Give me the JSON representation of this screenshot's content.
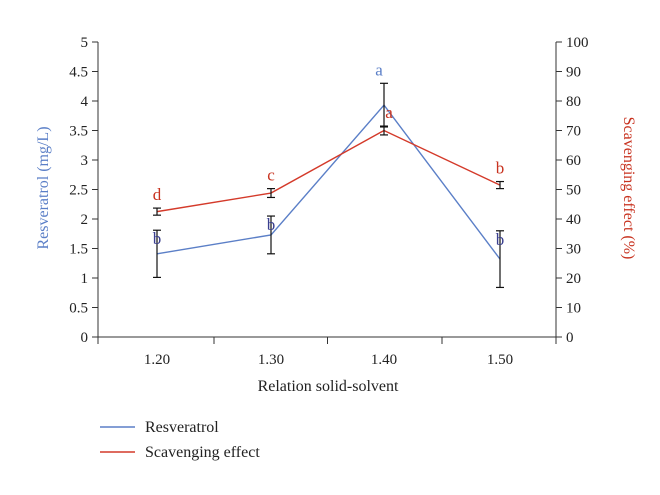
{
  "chart_data": {
    "type": "line",
    "title": "",
    "xlabel": "Relation solid-solvent",
    "categories": [
      "1.20",
      "1.30",
      "1.40",
      "1.50"
    ],
    "y_left": {
      "label": "Resveratrol (mg/L)",
      "min": 0,
      "max": 5,
      "ticks": [
        "0",
        "0.5",
        "1",
        "1.5",
        "2",
        "2.5",
        "3",
        "3.5",
        "4",
        "4.5",
        "5"
      ]
    },
    "y_right": {
      "label": "Scavenging effect (%)",
      "min": 0,
      "max": 100,
      "ticks": [
        "0",
        "10",
        "20",
        "30",
        "40",
        "50",
        "60",
        "70",
        "80",
        "90",
        "100"
      ]
    },
    "series": [
      {
        "name": "Resveratrol",
        "axis": "left",
        "color": "#5b7fc7",
        "values": [
          1.41,
          1.73,
          3.93,
          1.32
        ],
        "error": [
          0.4,
          0.32,
          0.37,
          0.48
        ],
        "labels": [
          "b",
          "b",
          "a",
          "b"
        ],
        "label_color": "#3a3f8f"
      },
      {
        "name": "Scavenging effect",
        "axis": "right",
        "color": "#d43a2a",
        "values": [
          42.5,
          48.8,
          70.0,
          51.5
        ],
        "error": [
          1.2,
          1.5,
          1.5,
          1.2
        ],
        "labels": [
          "d",
          "c",
          "a",
          "b"
        ],
        "label_color": "#c8321f"
      }
    ],
    "legend_position": "bottom-left",
    "grid": false
  }
}
